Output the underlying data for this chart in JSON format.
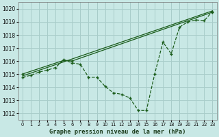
{
  "xlabel": "Graphe pression niveau de la mer (hPa)",
  "background_color": "#c8e8e5",
  "grid_color": "#a8ccc9",
  "line_color": "#1a5c1a",
  "xlim": [
    -0.5,
    23.5
  ],
  "ylim": [
    1011.5,
    1020.5
  ],
  "yticks": [
    1012,
    1013,
    1014,
    1015,
    1016,
    1017,
    1018,
    1019,
    1020
  ],
  "xticks": [
    0,
    1,
    2,
    3,
    4,
    5,
    6,
    7,
    8,
    9,
    10,
    11,
    12,
    13,
    14,
    15,
    16,
    17,
    18,
    19,
    20,
    21,
    22,
    23
  ],
  "line1_x": [
    0,
    23
  ],
  "line1_y": [
    1014.85,
    1019.85
  ],
  "line2_x": [
    0,
    5,
    6,
    23
  ],
  "line2_y": [
    1015.0,
    1016.05,
    1016.0,
    1019.75
  ],
  "line3_x": [
    0,
    1,
    2,
    3,
    4,
    5,
    6,
    7,
    8,
    9,
    10,
    11,
    12,
    13,
    14,
    15,
    16,
    17,
    18,
    19,
    20,
    21,
    22,
    23
  ],
  "line3_y": [
    1014.75,
    1014.9,
    1015.15,
    1015.3,
    1015.5,
    1016.1,
    1015.85,
    1015.75,
    1014.75,
    1014.75,
    1014.05,
    1013.55,
    1013.45,
    1013.15,
    1012.2,
    1012.2,
    1015.0,
    1017.45,
    1016.55,
    1018.6,
    1019.0,
    1019.15,
    1019.1,
    1019.8
  ],
  "linewidth": 0.9,
  "markersize": 3.5,
  "marker": "+"
}
